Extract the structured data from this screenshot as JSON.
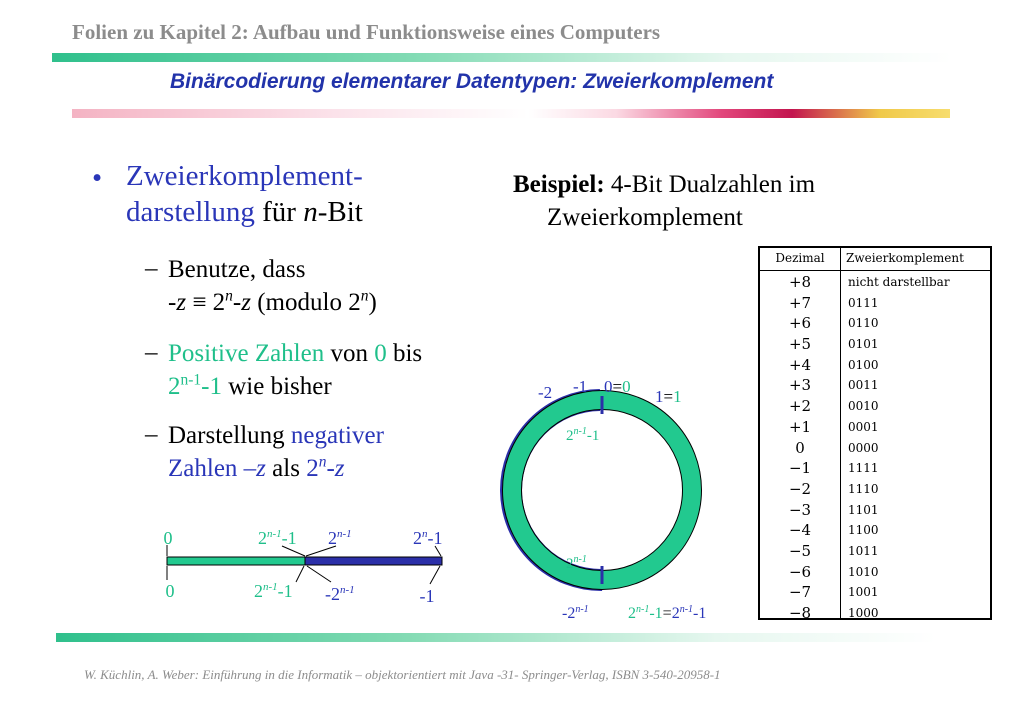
{
  "header": {
    "title": "Folien zu Kapitel 2: Aufbau und Funktionsweise eines Computers",
    "subtitle": "Binärcodierung elementarer Datentypen: Zweierkomplement"
  },
  "main": {
    "bullet": "•",
    "line1": "Zweierkomplement-",
    "line2_blue": "darstellung",
    "line2_rest": " für ",
    "n": "n",
    "bit": "-Bit",
    "sub1": {
      "dash": "–",
      "line1": "Benutze, dass",
      "neg": "-",
      "z": "z",
      "equiv": " ≡ 2",
      "exp": "n",
      "rest": " (modulo 2",
      "close": ")"
    },
    "sub2": {
      "dash": "–",
      "a": "Positive Zahlen",
      "b": " von ",
      "c": "0",
      "d": " bis",
      "e": "2",
      "exp": "n-1",
      "f": "-1",
      "g": " wie bisher"
    },
    "sub3": {
      "dash": "–",
      "a": "Darstellung ",
      "b": "negativer",
      "c": "Zahlen –",
      "z": "z",
      "d": " als ",
      "e": "2",
      "exp": "n",
      "f": "-"
    }
  },
  "example": {
    "label": "Beispiel:",
    "text1": " 4-Bit Dualzahlen im",
    "text2": "Zweierkomplement"
  },
  "table": {
    "headers": [
      "Dezimal",
      "Zweierkomplement"
    ],
    "rows": [
      [
        "+8",
        "nicht darstellbar"
      ],
      [
        "+7",
        "0111"
      ],
      [
        "+6",
        "0110"
      ],
      [
        "+5",
        "0101"
      ],
      [
        "+4",
        "0100"
      ],
      [
        "+3",
        "0011"
      ],
      [
        "+2",
        "0010"
      ],
      [
        "+1",
        "0001"
      ],
      [
        "0",
        "0000"
      ],
      [
        "−1",
        "1111"
      ],
      [
        "−2",
        "1110"
      ],
      [
        "−3",
        "1101"
      ],
      [
        "−4",
        "1100"
      ],
      [
        "−5",
        "1011"
      ],
      [
        "−6",
        "1010"
      ],
      [
        "−7",
        "1001"
      ],
      [
        "−8",
        "1000"
      ]
    ]
  },
  "numberline": {
    "top_left": "0",
    "top_mid_base": "2",
    "top_mid_exp": "n-1",
    "top_mid_tail": "-1",
    "top_mid2_base": "2",
    "top_mid2_exp": "n-1",
    "top_right_base": "2",
    "top_right_exp": "n",
    "top_right_tail": "-1",
    "bot_left": "0",
    "bot_mid_base": "2",
    "bot_mid_exp": "n-1",
    "bot_mid_tail": "-1",
    "bot_mid2_base": "-2",
    "bot_mid2_exp": "n-1",
    "bot_right": "-1"
  },
  "circle": {
    "m2": "-2",
    "m1": "-1",
    "zero_a": "0",
    "zero_eq": "=",
    "zero_b": "0",
    "one_a": "1",
    "one_eq": "=",
    "one_b": "1",
    "inner_top_base": "2",
    "inner_top_exp": "n-1",
    "inner_top_tail": "-1",
    "inner_bot_base": "2",
    "inner_bot_exp": "n-1",
    "bot_left_base": "-2",
    "bot_left_exp": "n-1",
    "bot_right_base": "2",
    "bot_right_exp": "n-1",
    "bot_right_tail": "-1",
    "bot_right_eq": "=",
    "bot_right_base2": "2",
    "bot_right_exp2": "n-1",
    "bot_right_tail2": "-1"
  },
  "footer": {
    "text": "W. Küchlin, A. Weber: Einführung in die Informatik – objektorientiert mit Java        -31-        Springer-Verlag, ISBN 3-540-20958-1"
  },
  "colors": {
    "blue": "#2a36b8",
    "green": "#1fbf8a",
    "ring_fill": "#22c98f",
    "navy": "#2b2fa8"
  }
}
